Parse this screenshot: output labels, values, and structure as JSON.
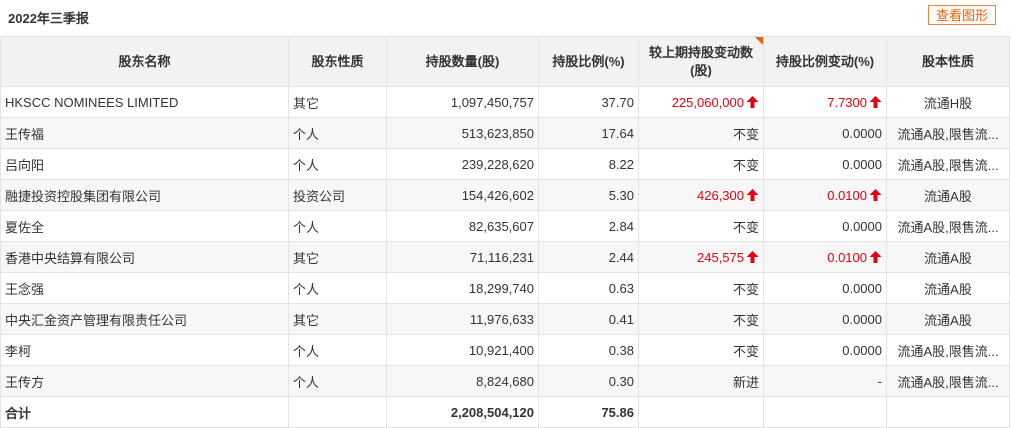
{
  "section": {
    "title": "2022年三季报",
    "chart_button": "查看图形"
  },
  "table": {
    "headers": {
      "name": "股东名称",
      "type": "股东性质",
      "shares": "持股数量(股)",
      "ratio": "持股比例(%)",
      "change": "较上期持股变动数(股)",
      "ratio_change": "持股比例变动(%)",
      "nature": "股本性质"
    },
    "rows": [
      {
        "name": "HKSCC NOMINEES LIMITED",
        "type": "其它",
        "shares": "1,097,450,757",
        "ratio": "37.70",
        "change": "225,060,000",
        "change_up": true,
        "ratio_change": "7.7300",
        "ratio_change_up": true,
        "nature": "流通H股"
      },
      {
        "name": "王传福",
        "type": "个人",
        "shares": "513,623,850",
        "ratio": "17.64",
        "change": "不变",
        "change_up": false,
        "ratio_change": "0.0000",
        "ratio_change_up": false,
        "nature": "流通A股,限售流..."
      },
      {
        "name": "吕向阳",
        "type": "个人",
        "shares": "239,228,620",
        "ratio": "8.22",
        "change": "不变",
        "change_up": false,
        "ratio_change": "0.0000",
        "ratio_change_up": false,
        "nature": "流通A股,限售流..."
      },
      {
        "name": "融捷投资控股集团有限公司",
        "type": "投资公司",
        "shares": "154,426,602",
        "ratio": "5.30",
        "change": "426,300",
        "change_up": true,
        "ratio_change": "0.0100",
        "ratio_change_up": true,
        "nature": "流通A股"
      },
      {
        "name": "夏佐全",
        "type": "个人",
        "shares": "82,635,607",
        "ratio": "2.84",
        "change": "不变",
        "change_up": false,
        "ratio_change": "0.0000",
        "ratio_change_up": false,
        "nature": "流通A股,限售流..."
      },
      {
        "name": "香港中央结算有限公司",
        "type": "其它",
        "shares": "71,116,231",
        "ratio": "2.44",
        "change": "245,575",
        "change_up": true,
        "ratio_change": "0.0100",
        "ratio_change_up": true,
        "nature": "流通A股"
      },
      {
        "name": "王念强",
        "type": "个人",
        "shares": "18,299,740",
        "ratio": "0.63",
        "change": "不变",
        "change_up": false,
        "ratio_change": "0.0000",
        "ratio_change_up": false,
        "nature": "流通A股"
      },
      {
        "name": "中央汇金资产管理有限责任公司",
        "type": "其它",
        "shares": "11,976,633",
        "ratio": "0.41",
        "change": "不变",
        "change_up": false,
        "ratio_change": "0.0000",
        "ratio_change_up": false,
        "nature": "流通A股"
      },
      {
        "name": "李柯",
        "type": "个人",
        "shares": "10,921,400",
        "ratio": "0.38",
        "change": "不变",
        "change_up": false,
        "ratio_change": "0.0000",
        "ratio_change_up": false,
        "nature": "流通A股,限售流..."
      },
      {
        "name": "王传方",
        "type": "个人",
        "shares": "8,824,680",
        "ratio": "0.30",
        "change": "新进",
        "change_up": false,
        "ratio_change": "-",
        "ratio_change_up": false,
        "nature": "流通A股,限售流..."
      }
    ],
    "total": {
      "label": "合计",
      "shares": "2,208,504,120",
      "ratio": "75.86"
    }
  },
  "colors": {
    "up": "#e60012",
    "accent": "#e8640c",
    "header_bg": "#f2f2f2",
    "alt_row_bg": "#f7f7f7",
    "border": "#e4e4e4"
  },
  "icons": {
    "increase": "arrow-up-icon",
    "sort_marker": "corner-triangle-icon"
  }
}
